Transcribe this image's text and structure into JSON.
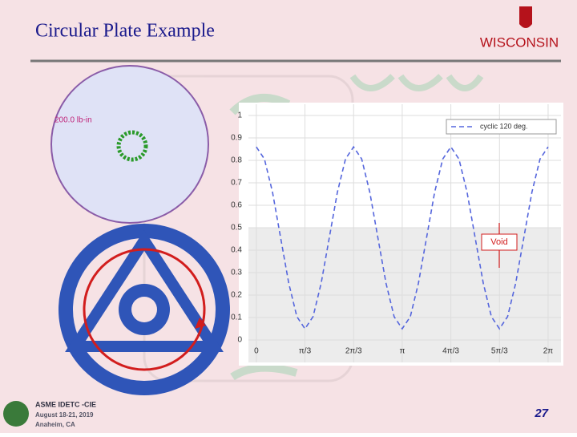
{
  "slide": {
    "title": "Circular Plate Example",
    "logo": "WISCONSIN",
    "load_label": "200.0 lb-in",
    "footer": [
      "ASME IDETC -CIE",
      "August 18-21, 2019",
      "Anaheim, CA"
    ],
    "page_number": "27"
  },
  "chart_data": {
    "type": "line",
    "annotation": "Void",
    "shaded_below": 0.5,
    "x": [
      0,
      0.1745,
      0.3491,
      0.5236,
      0.6981,
      0.8727,
      1.0472,
      1.2217,
      1.3963,
      1.5708,
      1.7453,
      1.9199,
      2.0944,
      2.2689,
      2.4435,
      2.618,
      2.7925,
      2.9671,
      3.1416,
      3.3161,
      3.4907,
      3.6652,
      3.8397,
      4.0143,
      4.1888,
      4.3633,
      4.5379,
      4.7124,
      4.8869,
      5.0615,
      5.236,
      5.4105,
      5.5851,
      5.7596,
      5.9341,
      6.1087,
      6.2832
    ],
    "series": [
      {
        "name": "cyclic 120 deg.",
        "color": "#5566dd",
        "values": [
          0.86,
          0.806,
          0.658,
          0.455,
          0.253,
          0.104,
          0.05,
          0.104,
          0.253,
          0.455,
          0.658,
          0.806,
          0.86,
          0.806,
          0.658,
          0.455,
          0.253,
          0.104,
          0.05,
          0.104,
          0.253,
          0.455,
          0.658,
          0.806,
          0.86,
          0.806,
          0.658,
          0.455,
          0.253,
          0.104,
          0.05,
          0.104,
          0.253,
          0.455,
          0.658,
          0.806,
          0.86
        ]
      }
    ],
    "xlim": [
      -0.17,
      6.56
    ],
    "ylim": [
      -0.1,
      1.05
    ],
    "xticks": [
      0,
      {
        "value": 1.0472,
        "label": "π/3"
      },
      {
        "value": 2.0944,
        "label": "2π/3"
      },
      {
        "value": 3.1416,
        "label": "π"
      },
      {
        "value": 4.1888,
        "label": "4π/3"
      },
      {
        "value": 5.236,
        "label": "5π/3"
      },
      {
        "value": 6.2832,
        "label": "2π"
      }
    ],
    "yticks": [
      0,
      0.1,
      0.2,
      0.3,
      0.4,
      0.5,
      0.6,
      0.7,
      0.8,
      0.9,
      1
    ],
    "grid": true,
    "legend": "upper right"
  }
}
